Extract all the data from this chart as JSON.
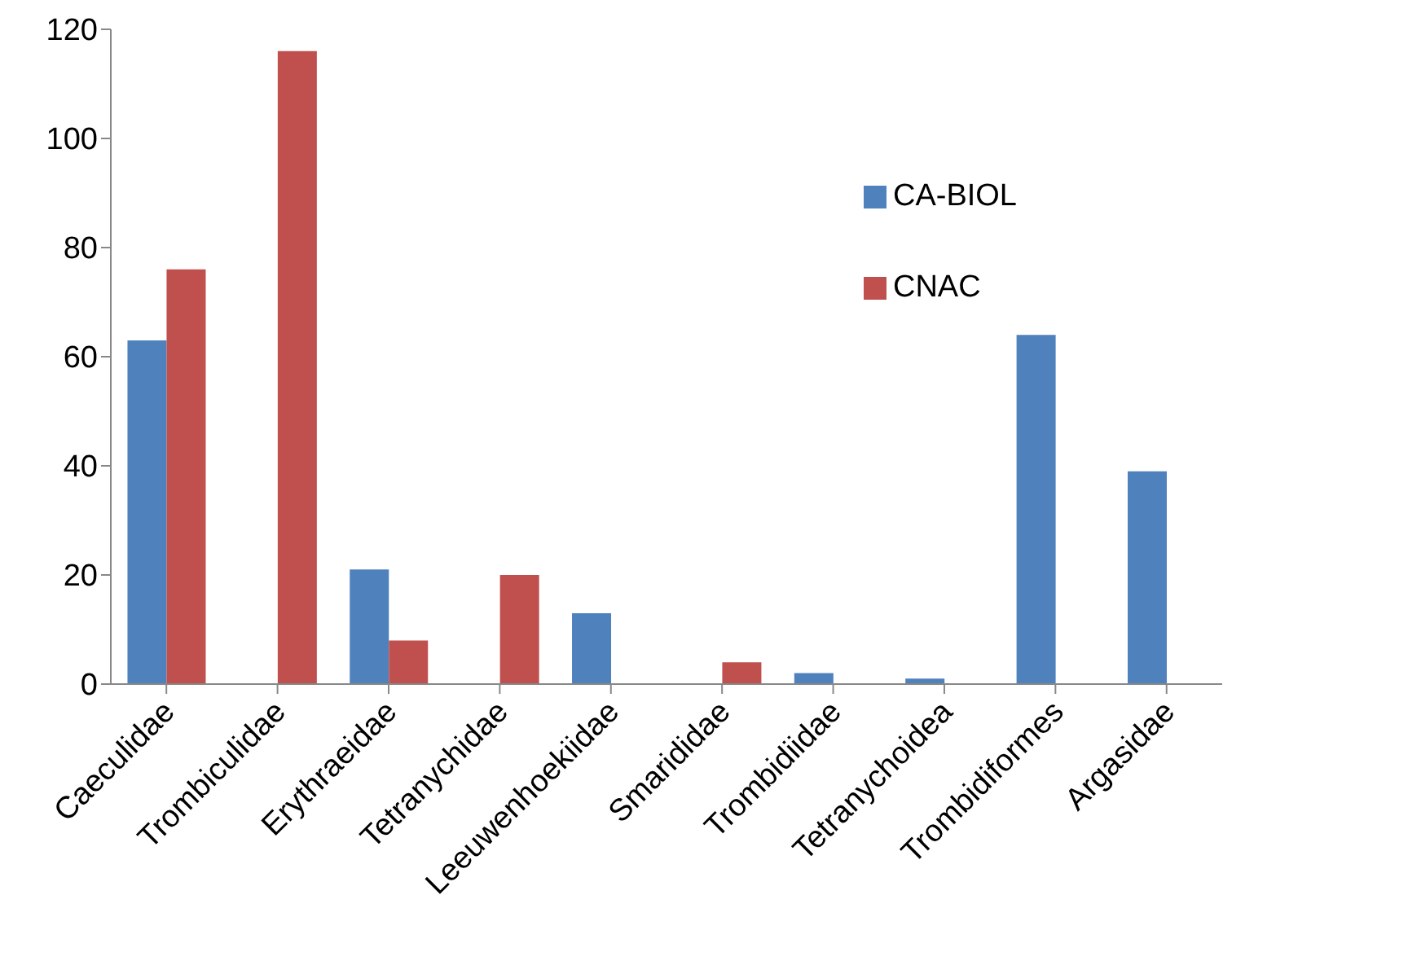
{
  "chart_data": {
    "type": "bar",
    "categories": [
      "Caeculidae",
      "Trombiculidae",
      "Erythraeidae",
      "Tetranychidae",
      "Leeuwenhoekiidae",
      "Smarididae",
      "Trombidiidae",
      "Tetranychoidea",
      "Trombidiformes",
      "Argasidae"
    ],
    "series": [
      {
        "name": "CA-BIOL",
        "color": "#4f81bd",
        "values": [
          63,
          null,
          21,
          null,
          13,
          null,
          2,
          1,
          64,
          39
        ]
      },
      {
        "name": "CNAC",
        "color": "#c0504d",
        "values": [
          76,
          116,
          8,
          20,
          null,
          4,
          null,
          null,
          null,
          null
        ]
      }
    ],
    "ylim": [
      0,
      120
    ],
    "yticks": [
      0,
      20,
      40,
      60,
      80,
      100,
      120
    ],
    "grid": false,
    "legend": "top right"
  }
}
